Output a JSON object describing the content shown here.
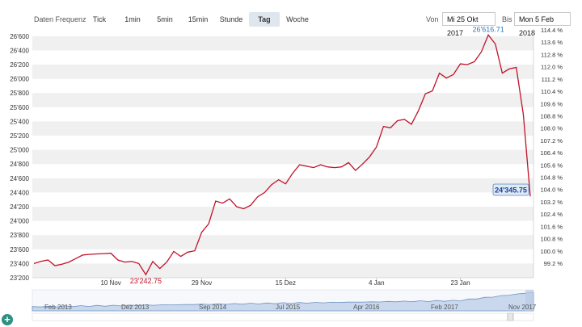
{
  "toolbar": {
    "frequency_label": "Daten Frequenz",
    "buttons": [
      "Tick",
      "1min",
      "5min",
      "15min",
      "Stunde",
      "Tag",
      "Woche"
    ],
    "active": "Tag",
    "from_label": "Von",
    "from_value": "Mi 25 Okt 2017",
    "to_label": "Bis",
    "to_value": "Mon 5 Feb 2018"
  },
  "colors": {
    "line": "#c0122a",
    "navigator": "#6e93c4",
    "accent": "#2e8f82",
    "last_price_text": "#1a3f8f"
  },
  "chart_data": {
    "type": "line",
    "title": "",
    "xlabel": "",
    "ylabel": "",
    "ylim": [
      23200,
      26700
    ],
    "y_ticks": [
      "23'200",
      "23'400",
      "23'600",
      "23'800",
      "24'000",
      "24'200",
      "24'400",
      "24'600",
      "24'800",
      "25'000",
      "25'200",
      "25'400",
      "25'600",
      "25'800",
      "26'000",
      "26'200",
      "26'400",
      "26'600"
    ],
    "y2_ticks": [
      "99.2 %",
      "100.0 %",
      "100.8 %",
      "101.6 %",
      "102.4 %",
      "103.2 %",
      "104.0 %",
      "104.8 %",
      "105.6 %",
      "106.4 %",
      "107.2 %",
      "108.0 %",
      "108.8 %",
      "109.6 %",
      "110.4 %",
      "111.2 %",
      "112.0 %",
      "112.8 %",
      "113.6 %",
      "114.4 %"
    ],
    "x_tick_labels": [
      "10 Nov",
      "29 Nov",
      "15 Dez",
      "4 Jan",
      "23 Jan"
    ],
    "x_tick_index": [
      11,
      24,
      36,
      49,
      61
    ],
    "series": [
      {
        "values": [
          23400,
          23430,
          23450,
          23370,
          23390,
          23420,
          23470,
          23520,
          23530,
          23535,
          23540,
          23545,
          23450,
          23420,
          23430,
          23400,
          23242.75,
          23430,
          23330,
          23420,
          23570,
          23500,
          23560,
          23580,
          23840,
          23960,
          24280,
          24250,
          24310,
          24200,
          24170,
          24220,
          24340,
          24400,
          24510,
          24580,
          24520,
          24670,
          24790,
          24770,
          24750,
          24790,
          24760,
          24750,
          24760,
          24820,
          24710,
          24800,
          24900,
          25040,
          25330,
          25310,
          25410,
          25430,
          25360,
          25550,
          25790,
          25830,
          26080,
          26010,
          26060,
          26210,
          26200,
          26240,
          26380,
          26616.71,
          26490,
          26080,
          26140,
          26160,
          25500,
          24345.75
        ]
      }
    ],
    "annotations": {
      "min_label": "23'242.75",
      "max_label": "26'616.71",
      "last_label": "24'345.75"
    }
  },
  "navigator": {
    "labels": [
      "Feb 2013",
      "Dez 2013",
      "Sep 2014",
      "Jul 2015",
      "Apr 2016",
      "Feb 2017",
      "Nov 2017"
    ]
  }
}
